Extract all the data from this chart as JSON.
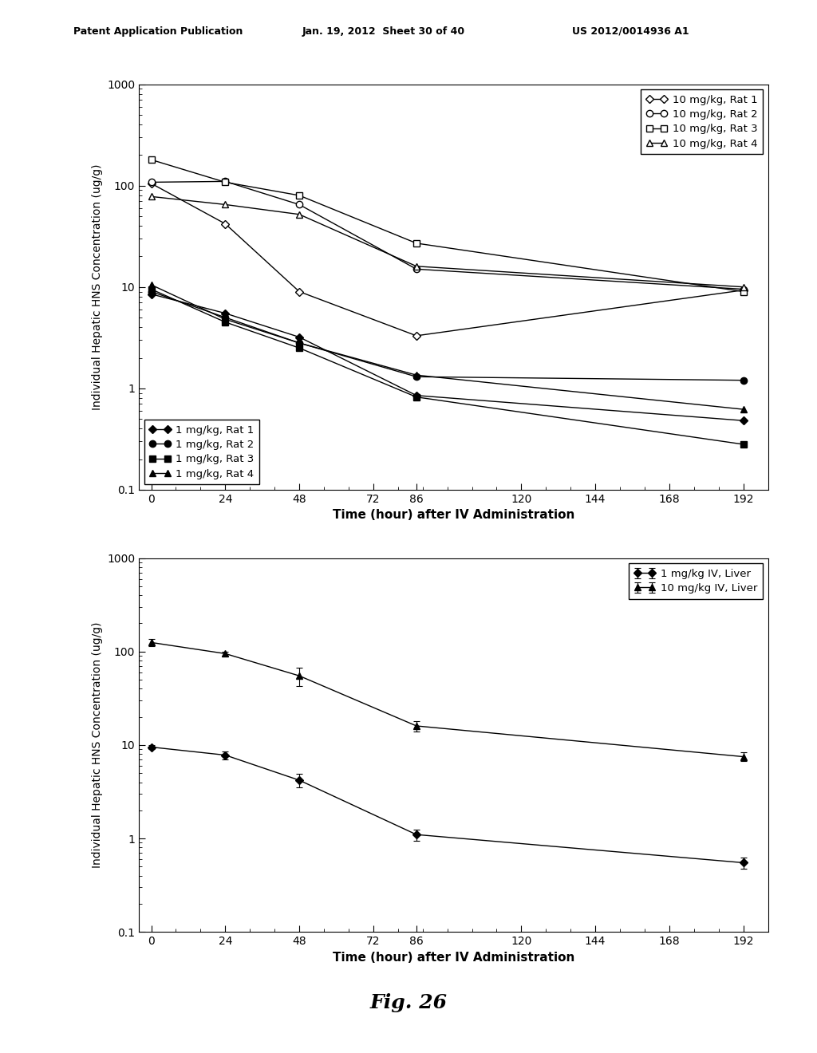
{
  "header_left": "Patent Application Publication",
  "header_mid": "Jan. 19, 2012  Sheet 30 of 40",
  "header_right": "US 2012/0014936 A1",
  "fig_label": "Fig. 26",
  "ylabel": "Individual Hepatic HNS Concentration (ug/g)",
  "xlabel": "Time (hour) after IV Administration",
  "xticks": [
    0,
    24,
    48,
    72,
    86,
    120,
    144,
    168,
    192
  ],
  "ylim": [
    0.1,
    1000
  ],
  "xlim": [
    -4,
    200
  ],
  "plot1": {
    "series": [
      {
        "label": "10 mg/kg, Rat 1",
        "marker": "D",
        "filled": false,
        "x": [
          0,
          24,
          48,
          86,
          192
        ],
        "y": [
          105,
          42,
          9.0,
          3.3,
          9.3
        ]
      },
      {
        "label": "10 mg/kg, Rat 2",
        "marker": "o",
        "filled": false,
        "x": [
          0,
          24,
          48,
          86,
          192
        ],
        "y": [
          108,
          110,
          65,
          15,
          9.5
        ]
      },
      {
        "label": "10 mg/kg, Rat 3",
        "marker": "s",
        "filled": false,
        "x": [
          0,
          24,
          48,
          86,
          192
        ],
        "y": [
          180,
          108,
          80,
          27,
          9.0
        ]
      },
      {
        "label": "10 mg/kg, Rat 4",
        "marker": "^",
        "filled": false,
        "x": [
          0,
          24,
          48,
          86,
          192
        ],
        "y": [
          78,
          65,
          52,
          16,
          10
        ]
      },
      {
        "label": "1 mg/kg, Rat 1",
        "marker": "D",
        "filled": true,
        "x": [
          0,
          24,
          48,
          86,
          192
        ],
        "y": [
          8.5,
          5.5,
          3.2,
          0.85,
          0.48
        ]
      },
      {
        "label": "1 mg/kg, Rat 2",
        "marker": "o",
        "filled": true,
        "x": [
          0,
          24,
          48,
          86,
          192
        ],
        "y": [
          9.0,
          5.0,
          2.8,
          1.3,
          1.2
        ]
      },
      {
        "label": "1 mg/kg, Rat 3",
        "marker": "s",
        "filled": true,
        "x": [
          0,
          24,
          48,
          86,
          192
        ],
        "y": [
          9.5,
          4.5,
          2.5,
          0.82,
          0.28
        ]
      },
      {
        "label": "1 mg/kg, Rat 4",
        "marker": "^",
        "filled": true,
        "x": [
          0,
          24,
          48,
          86,
          192
        ],
        "y": [
          10.5,
          4.8,
          2.8,
          1.35,
          0.62
        ]
      }
    ]
  },
  "plot2": {
    "series": [
      {
        "label": "1 mg/kg IV, Liver",
        "marker": "D",
        "filled": true,
        "x": [
          0,
          24,
          48,
          86,
          192
        ],
        "y": [
          9.5,
          7.8,
          4.2,
          1.1,
          0.55
        ],
        "yerr_lo": [
          0.5,
          0.8,
          0.7,
          0.15,
          0.08
        ],
        "yerr_hi": [
          0.5,
          0.8,
          0.7,
          0.15,
          0.08
        ]
      },
      {
        "label": "10 mg/kg IV, Liver",
        "marker": "^",
        "filled": true,
        "x": [
          0,
          24,
          48,
          86,
          192
        ],
        "y": [
          125,
          95,
          55,
          16,
          7.5
        ],
        "yerr_lo": [
          10,
          5,
          12,
          2.0,
          0.8
        ],
        "yerr_hi": [
          10,
          5,
          12,
          2.0,
          0.8
        ]
      }
    ]
  },
  "line_color": "#000000",
  "background_color": "#ffffff"
}
